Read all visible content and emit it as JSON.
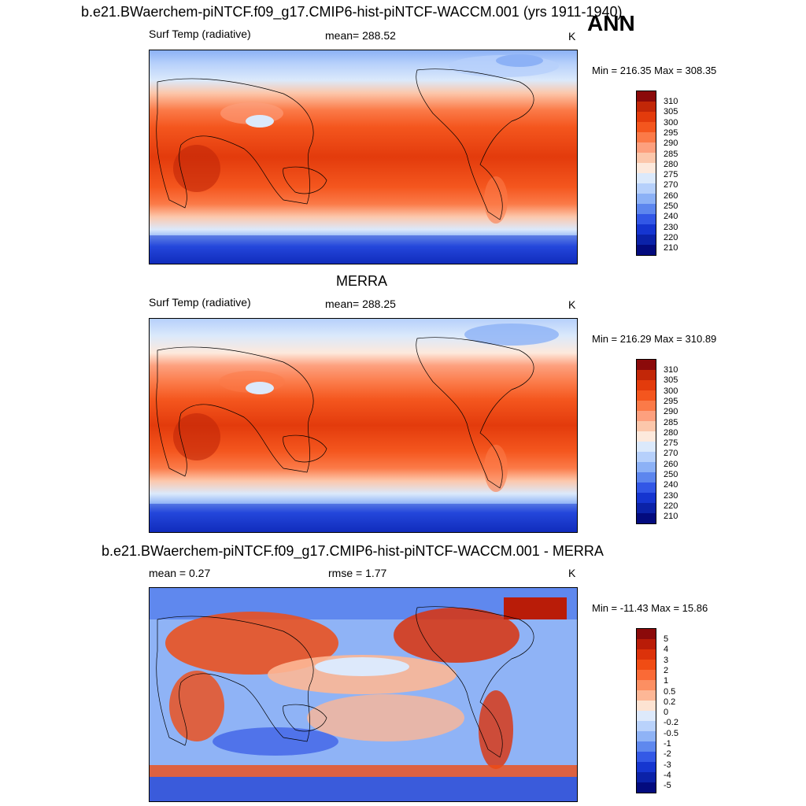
{
  "season": "ANN",
  "panels": [
    {
      "title": "b.e21.BWaerchem-piNTCF.f09_g17.CMIP6-hist-piNTCF-WACCM.001 (yrs 1911-1940)",
      "left_label": "Surf Temp (radiative)",
      "center_label": "mean= 288.52",
      "units": "K",
      "range_label": "Min = 216.35 Max = 308.35"
    },
    {
      "title": "MERRA",
      "left_label": "Surf Temp (radiative)",
      "center_label": "mean= 288.25",
      "units": "K",
      "range_label": "Min = 216.29 Max = 310.89"
    },
    {
      "title": "b.e21.BWaerchem-piNTCF.f09_g17.CMIP6-hist-piNTCF-WACCM.001 - MERRA",
      "left_label": "mean =   0.27",
      "center_label": "rmse =   1.77",
      "units": "K",
      "range_label": "Min = -11.43 Max =  15.86"
    }
  ],
  "chart_data": [
    {
      "type": "heatmap",
      "title": "b.e21.BWaerchem-piNTCF.f09_g17.CMIP6-hist-piNTCF-WACCM.001 (yrs 1911-1940)",
      "variable": "Surf Temp (radiative)",
      "units": "K",
      "mean": 288.52,
      "min": 216.35,
      "max": 308.35,
      "colorbar_levels": [
        310,
        305,
        300,
        295,
        290,
        285,
        280,
        275,
        270,
        260,
        250,
        240,
        230,
        220,
        210
      ],
      "colorbar_colors": [
        "#8b0a0a",
        "#c22708",
        "#e33b0c",
        "#f4561e",
        "#fb7a48",
        "#fda07e",
        "#fcc7ab",
        "#fde9dc",
        "#dbe9fb",
        "#b6d0fb",
        "#8cb1f6",
        "#5d86ee",
        "#3257e6",
        "#1535d0",
        "#0b22a8",
        "#030b7e"
      ]
    },
    {
      "type": "heatmap",
      "title": "MERRA",
      "variable": "Surf Temp (radiative)",
      "units": "K",
      "mean": 288.25,
      "min": 216.29,
      "max": 310.89,
      "colorbar_levels": [
        310,
        305,
        300,
        295,
        290,
        285,
        280,
        275,
        270,
        260,
        250,
        240,
        230,
        220,
        210
      ],
      "colorbar_colors": [
        "#8b0a0a",
        "#c22708",
        "#e33b0c",
        "#f4561e",
        "#fb7a48",
        "#fda07e",
        "#fcc7ab",
        "#fde9dc",
        "#dbe9fb",
        "#b6d0fb",
        "#8cb1f6",
        "#5d86ee",
        "#3257e6",
        "#1535d0",
        "#0b22a8",
        "#030b7e"
      ]
    },
    {
      "type": "heatmap",
      "title": "b.e21.BWaerchem-piNTCF.f09_g17.CMIP6-hist-piNTCF-WACCM.001 - MERRA",
      "units": "K",
      "mean": 0.27,
      "rmse": 1.77,
      "min": -11.43,
      "max": 15.86,
      "colorbar_levels": [
        "5",
        "4",
        "3",
        "2",
        "1",
        "0.5",
        "0.2",
        "0",
        "-0.2",
        "-0.5",
        "-1",
        "-2",
        "-3",
        "-4",
        "-5"
      ],
      "colorbar_colors": [
        "#8b0a0a",
        "#b91c08",
        "#dc320a",
        "#f04c14",
        "#fa6a36",
        "#fc8f62",
        "#fdb796",
        "#fde3d2",
        "#dde9fb",
        "#b9d2fb",
        "#8fb3f6",
        "#5f88ee",
        "#3459e6",
        "#1636d0",
        "#0b22a8",
        "#030b7e"
      ]
    }
  ]
}
